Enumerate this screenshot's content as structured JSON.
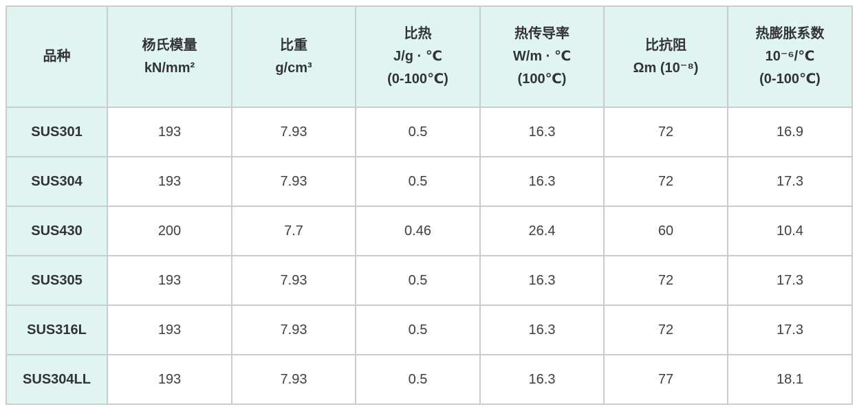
{
  "table": {
    "name": "stainless-steel-physical-properties",
    "columns": [
      {
        "key": "grade",
        "label": "品种"
      },
      {
        "key": "youngs-modulus",
        "label": "杨氏模量\nkN/mm²"
      },
      {
        "key": "specific-gravity",
        "label": "比重\ng/cm³"
      },
      {
        "key": "specific-heat",
        "label": "比热\nJ/g · ℃\n(0-100℃)"
      },
      {
        "key": "thermal-conductivity",
        "label": "热传导率\nW/m · ℃\n(100℃)"
      },
      {
        "key": "specific-resistance",
        "label": "比抗阻\nΩm (10⁻⁸)"
      },
      {
        "key": "thermal-expansion",
        "label": "热膨胀系数\n10⁻⁶/℃\n(0-100℃)"
      }
    ],
    "rows": [
      {
        "grade": "SUS301",
        "values": [
          "193",
          "7.93",
          "0.5",
          "16.3",
          "72",
          "16.9"
        ]
      },
      {
        "grade": "SUS304",
        "values": [
          "193",
          "7.93",
          "0.5",
          "16.3",
          "72",
          "17.3"
        ]
      },
      {
        "grade": "SUS430",
        "values": [
          "200",
          "7.7",
          "0.46",
          "26.4",
          "60",
          "10.4"
        ]
      },
      {
        "grade": "SUS305",
        "values": [
          "193",
          "7.93",
          "0.5",
          "16.3",
          "72",
          "17.3"
        ]
      },
      {
        "grade": "SUS316L",
        "values": [
          "193",
          "7.93",
          "0.5",
          "16.3",
          "72",
          "17.3"
        ]
      },
      {
        "grade": "SUS304LL",
        "values": [
          "193",
          "7.93",
          "0.5",
          "16.3",
          "77",
          "18.1"
        ]
      }
    ]
  },
  "colors": {
    "header_bg": "#e0f5f1",
    "border": "#cccccc",
    "header_text": "#333333",
    "cell_text": "#404040",
    "page_bg": "#ffffff"
  }
}
